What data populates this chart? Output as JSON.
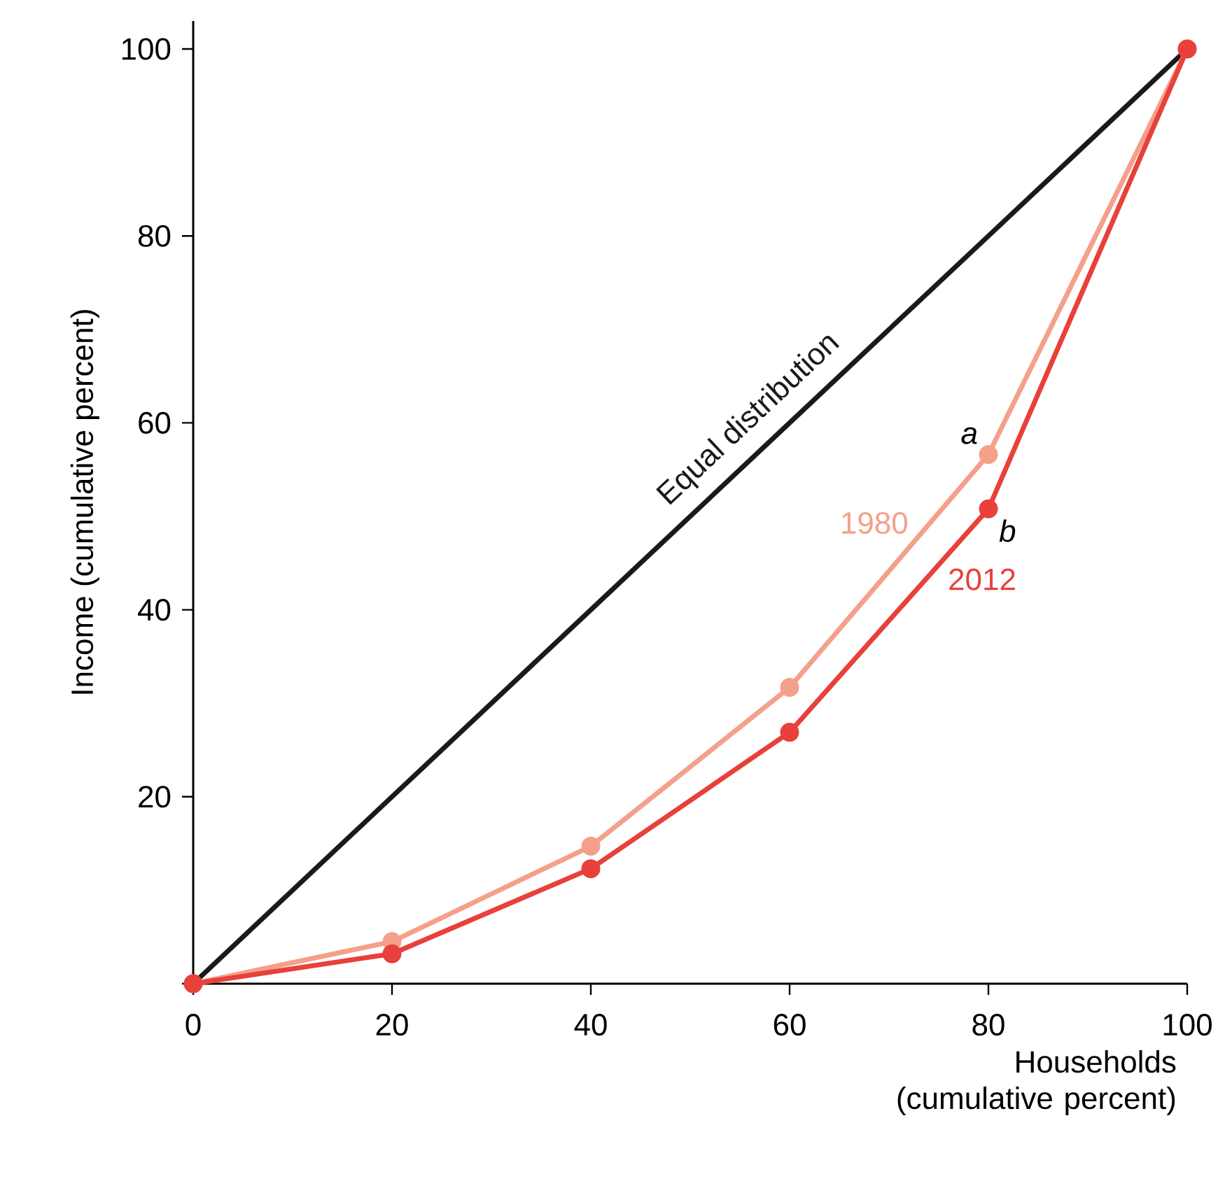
{
  "chart_data": {
    "type": "line",
    "xlabel": "Households (cumulative percent)",
    "ylabel": "Income (cumulative percent)",
    "x": [
      0,
      20,
      40,
      60,
      80,
      100
    ],
    "series": [
      {
        "name": "Equal distribution",
        "color": "#1a1a1a",
        "marker": "none",
        "values": [
          0,
          20,
          40,
          60,
          80,
          100
        ]
      },
      {
        "name": "1980",
        "color": "#f4a08a",
        "values": [
          0,
          4.5,
          14.7,
          31.7,
          56.6,
          100
        ]
      },
      {
        "name": "2012",
        "color": "#e8403a",
        "values": [
          0,
          3.2,
          12.3,
          26.9,
          50.8,
          100
        ]
      }
    ],
    "annotations": [
      {
        "text": "a",
        "x": 80,
        "y": 56.6
      },
      {
        "text": "b",
        "x": 80,
        "y": 50.8
      }
    ],
    "xlim": [
      0,
      100
    ],
    "ylim": [
      0,
      103
    ],
    "xticks": [
      0,
      20,
      40,
      60,
      80,
      100
    ],
    "yticks": [
      {
        "value": 0,
        "label": null
      },
      20,
      40,
      60,
      80,
      100
    ],
    "marker": "circle",
    "line_style": "solid",
    "grid": false,
    "legend": false
  }
}
